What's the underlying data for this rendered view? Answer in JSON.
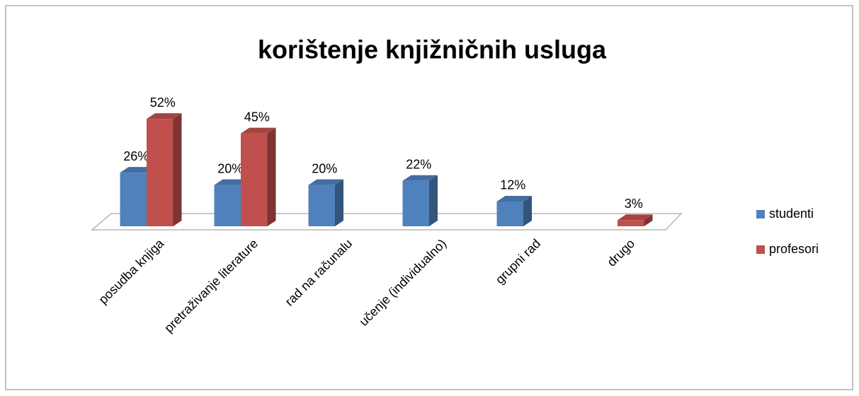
{
  "chart_data": {
    "type": "bar3d",
    "title": "korištenje knjižničnih usluga",
    "categories": [
      "posudba knjiga",
      "pretraživanje literature",
      "rad na računalu",
      "učenje (individualno)",
      "grupni rad",
      "drugo"
    ],
    "series": [
      {
        "name": "studenti",
        "color": "#4f81bd",
        "values": [
          26,
          20,
          20,
          22,
          12,
          null
        ],
        "value_labels": [
          "26%",
          "20%",
          "20%",
          "22%",
          "12%",
          null
        ]
      },
      {
        "name": "profesori",
        "color": "#c0504d",
        "values": [
          52,
          45,
          null,
          null,
          null,
          3
        ],
        "value_labels": [
          "52%",
          "45%",
          null,
          null,
          null,
          "3%"
        ]
      }
    ],
    "legend": "right"
  }
}
